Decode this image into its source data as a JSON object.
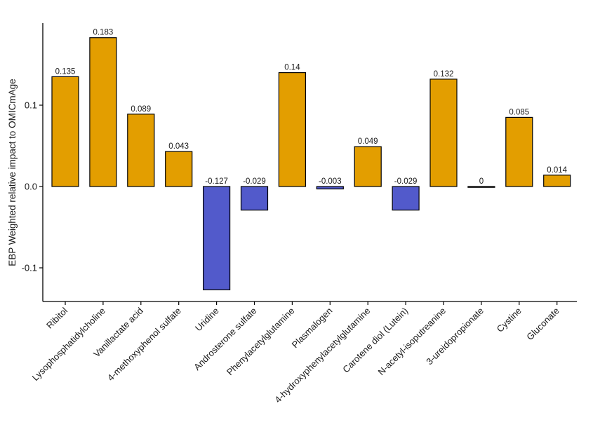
{
  "chart_data": {
    "type": "bar",
    "title": "",
    "xlabel": "",
    "ylabel": "EBP Weighted relative impact to OMICmAge",
    "ylim": [
      -0.14,
      0.2
    ],
    "yticks": [
      -0.1,
      0.0,
      0.1
    ],
    "ytick_labels": [
      "-0.1",
      "0.0",
      "0.1"
    ],
    "grid": false,
    "legend": "none",
    "colors": {
      "positive": "#E39E00",
      "negative": "#525ACB",
      "outline": "#000000"
    },
    "categories": [
      "Ribitol",
      "Lysophosphatidylcholine",
      "Vanillactate acid",
      "4-methoxyphenol sulfate",
      "Uridine",
      "Androsterone sulfate",
      "Phenylacetylglutamine",
      "Plasmalogen",
      "4-hydroxyphenylacetylglutamine",
      "Carotene diol (Lutein)",
      "N-acetyl-isoputreanine",
      "3-ureidopropionate",
      "Cystine",
      "Gluconate"
    ],
    "values": [
      0.135,
      0.183,
      0.089,
      0.043,
      -0.127,
      -0.029,
      0.14,
      -0.003,
      0.049,
      -0.029,
      0.132,
      0,
      0.085,
      0.014
    ],
    "value_labels": [
      "0.135",
      "0.183",
      "0.089",
      "0.043",
      "-0.127",
      "-0.029",
      "0.14",
      "-0.003",
      "0.049",
      "-0.029",
      "0.132",
      "0",
      "0.085",
      "0.014"
    ]
  }
}
